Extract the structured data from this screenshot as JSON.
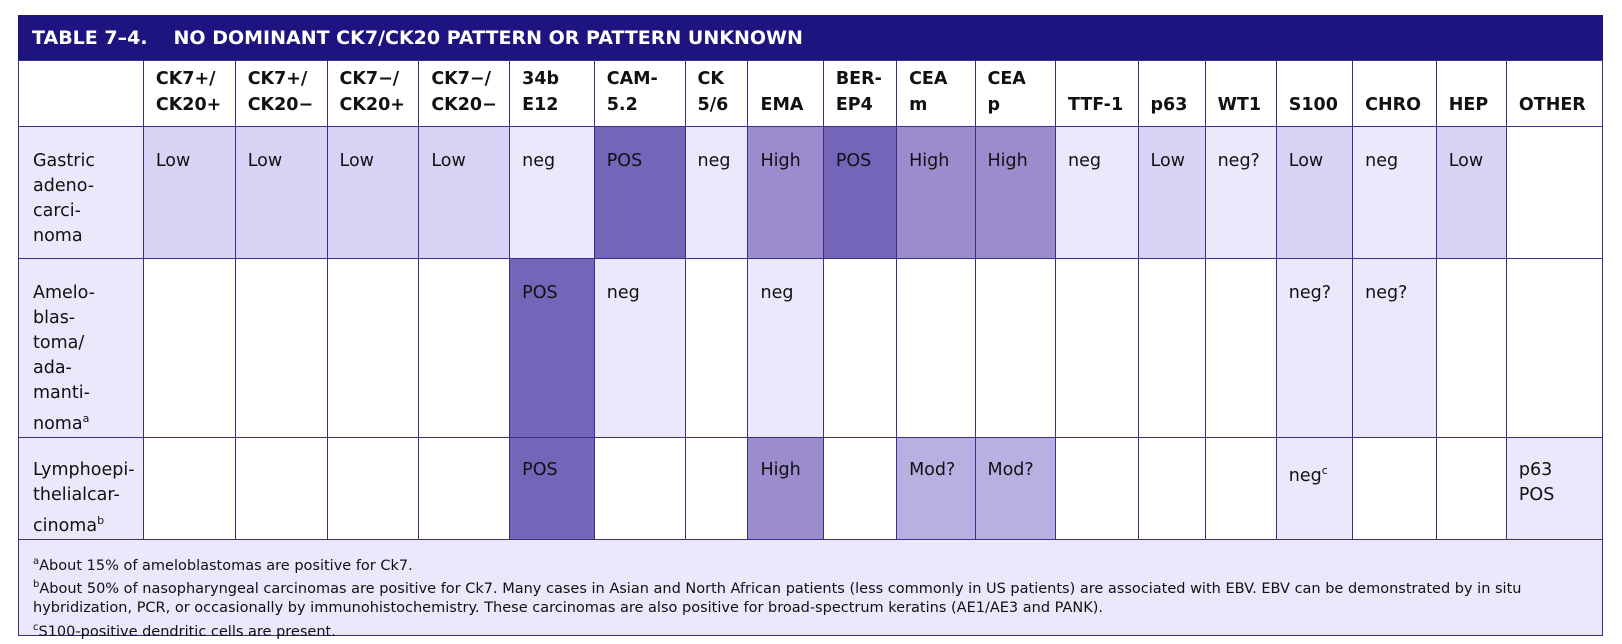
{
  "title": {
    "number": "TABLE 7–4.",
    "text": "NO DOMINANT CK7/CK20 PATTERN OR PATTERN UNKNOWN"
  },
  "headers": [
    "",
    "CK7+/\nCK20+",
    "CK7+/\nCK20−",
    "CK7−/\nCK20+",
    "CK7−/\nCK20−",
    "34b\nE12",
    "CAM-\n5.2",
    "CK\n5/6",
    "EMA",
    "BER-\nEP4",
    "CEA\nm",
    "CEA\np",
    "TTF-1",
    "p63",
    "WT1",
    "S100",
    "CHRO",
    "HEP",
    "OTHER"
  ],
  "rows": [
    {
      "name": "Gastric\n    adeno-\n    carci-\n    noma",
      "cells": [
        "Low",
        "Low",
        "Low",
        "Low",
        "neg",
        "POS",
        "neg",
        "High",
        "POS",
        "High",
        "High",
        "neg",
        "Low",
        "neg?",
        "Low",
        "neg",
        "Low",
        ""
      ],
      "shades": [
        "m",
        "m",
        "m",
        "m",
        "l",
        "p",
        "l",
        "h",
        "p",
        "h",
        "h",
        "l",
        "m",
        "l",
        "m",
        "l",
        "m",
        "w"
      ]
    },
    {
      "name": "Amelo-\n    blas-\n    toma/\n    ada-\n    manti-\n    noma",
      "name_sup": "a",
      "cells": [
        "",
        "",
        "",
        "",
        "POS",
        "neg",
        "",
        "neg",
        "",
        "",
        "",
        "",
        "",
        "",
        "neg?",
        "neg?",
        "",
        ""
      ],
      "shades": [
        "w",
        "w",
        "w",
        "w",
        "p",
        "l",
        "w",
        "l",
        "w",
        "w",
        "w",
        "w",
        "w",
        "w",
        "l",
        "l",
        "w",
        "w"
      ]
    },
    {
      "name": "Lymphoepi-\n    thelialcar-\n    cinoma",
      "name_sup": "b",
      "cells": [
        "",
        "",
        "",
        "",
        "POS",
        "",
        "",
        "High",
        "",
        "Mod?",
        "Mod?",
        "",
        "",
        "",
        "neg",
        "",
        "",
        "p63\n     POS"
      ],
      "cell_sups": {
        "14": "c"
      },
      "shades": [
        "w",
        "w",
        "w",
        "w",
        "p",
        "w",
        "w",
        "h",
        "w",
        "mod",
        "mod",
        "w",
        "w",
        "w",
        "l",
        "w",
        "w",
        "l"
      ]
    }
  ],
  "footnotes": [
    {
      "mark": "a",
      "text": "About 15% of ameloblastomas are positive for Ck7."
    },
    {
      "mark": "b",
      "text": "About 50% of nasopharyngeal carcinomas are positive for Ck7. Many cases in Asian and North African patients (less commonly in US patients) are associated with EBV. EBV can be demonstrated by in situ hybridization, PCR, or occasionally by immunohistochemistry. These carcinomas are also positive for broad-spectrum keratins (AE1/AE3 and PANK)."
    },
    {
      "mark": "c",
      "text": "S100-positive dendritic cells are present."
    }
  ],
  "colors": {
    "header_bar": "#1e1480",
    "border": "#3b2f8c",
    "light": "#ece7fb",
    "medium_low": "#d8d2f4",
    "moderate": "#b7b1e2",
    "high": "#9a8ccd",
    "positive": "#7465b9"
  }
}
